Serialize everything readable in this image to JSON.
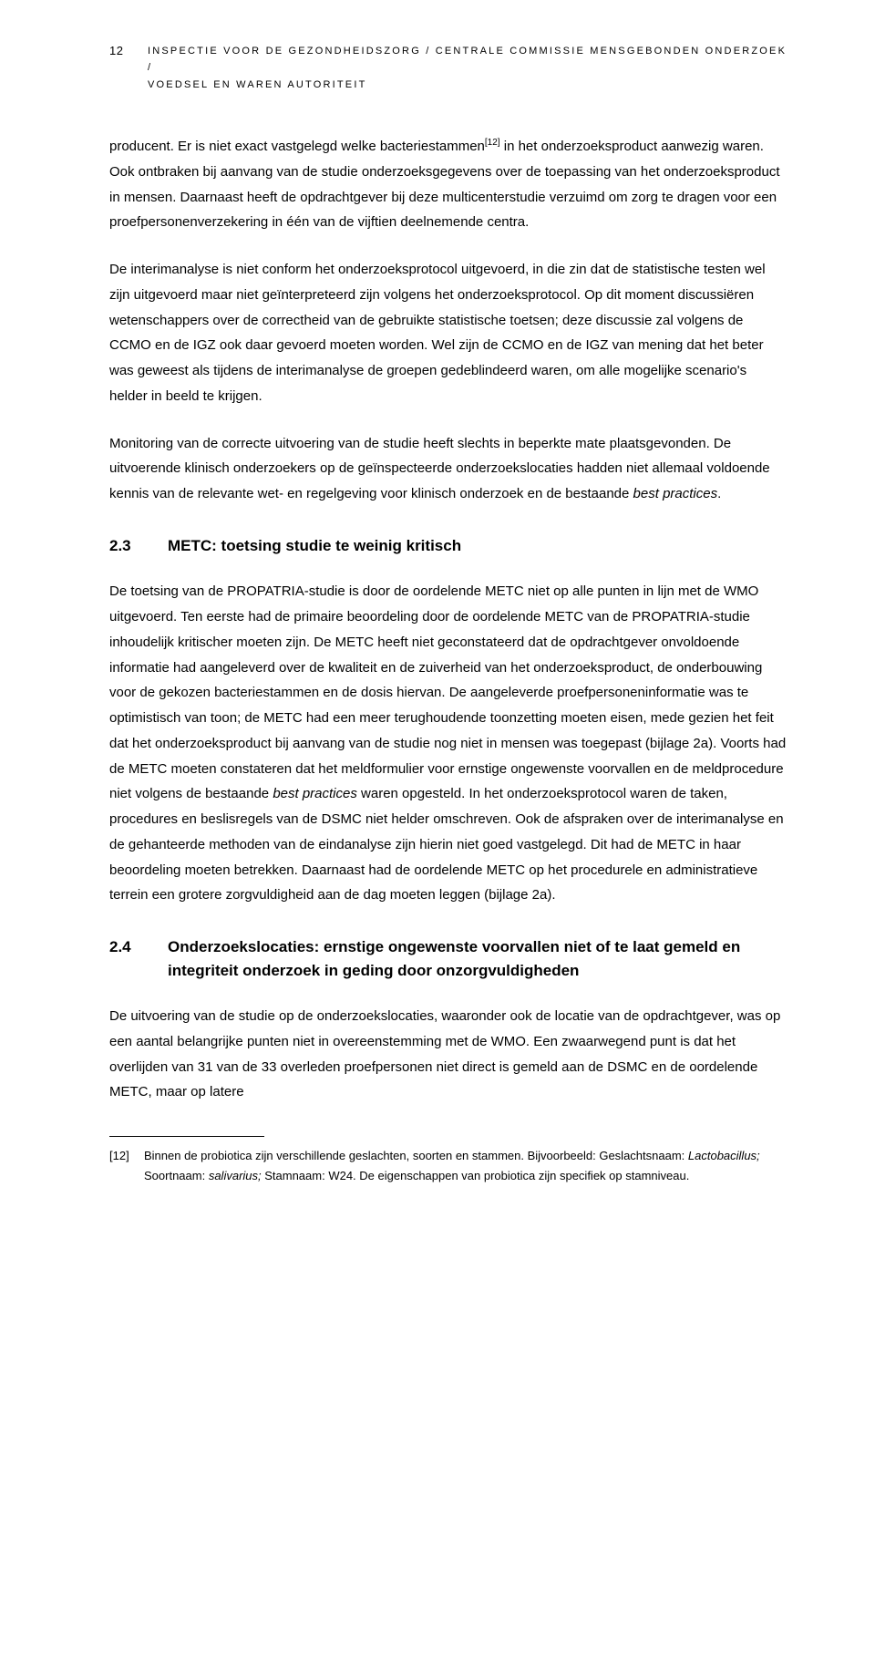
{
  "page_number": "12",
  "header": {
    "line1": "INSPECTIE VOOR DE GEZONDHEIDSZORG / CENTRALE COMMISSIE MENSGEBONDEN ONDERZOEK /",
    "line2": "VOEDSEL EN WAREN AUTORITEIT"
  },
  "para1_a": "producent. Er is niet exact vastgelegd welke bacteriestammen",
  "para1_ref": "[12]",
  "para1_b": " in het onderzoeks­product aanwezig waren. Ook ontbraken bij aanvang van de studie onderzoeks­gegevens over de toepassing van het onderzoeksproduct in mensen. Daarnaast heeft de opdrachtgever bij deze multicenterstudie verzuimd om zorg te dragen voor een proefpersonenverzekering in één van de vijftien deelnemende centra.",
  "para2": "De interimanalyse is niet conform het onderzoeksprotocol uitgevoerd, in die zin dat de statistische testen wel zijn uitgevoerd maar niet geïnterpreteerd zijn volgens het onderzoeksprotocol. Op dit moment discussiëren wetenschappers over de correctheid van de gebruikte statistische toetsen; deze discussie zal volgens de CCMO en de IGZ ook daar gevoerd moeten worden. Wel zijn de CCMO en de IGZ van mening dat het beter was geweest als tijdens de interimanalyse de groepen gedeblindeerd waren, om alle mogelijke scenario's helder in beeld te krijgen.",
  "para3_a": "Monitoring van de correcte uitvoering van de studie heeft slechts in beperkte mate plaatsgevonden. De uitvoerende klinisch onderzoekers op de geïnspecteerde onder­zoekslocaties hadden niet allemaal voldoende kennis van de relevante wet- en regel­geving voor klinisch onderzoek en de bestaande ",
  "para3_ital": "best practices",
  "para3_b": ".",
  "section23": {
    "num": "2.3",
    "title": "METC: toetsing studie te weinig kritisch"
  },
  "para4_a": "De toetsing van de PROPATRIA-studie is door de oordelende METC niet op alle punten in lijn met de WMO uitgevoerd. Ten eerste had de primaire beoordeling door de oordelende METC van de PROPATRIA-studie inhoudelijk kritischer moeten zijn. De METC heeft niet geconstateerd dat de opdrachtgever onvoldoende informatie had aangeleverd over de kwaliteit en de zuiverheid van het onderzoeksproduct, de onder­bouwing voor de gekozen bacteriestammen en de dosis hiervan. De aangeleverde proefpersoneninformatie was te optimistisch van toon; de METC had een meer terug­houdende toonzetting moeten eisen, mede gezien het feit dat het onderzoeksproduct bij aanvang van de studie nog niet in mensen was toegepast (bijlage 2a). Voorts had de METC moeten constateren dat het meldformulier voor ernstige ongewenste voorvallen en de meldprocedure niet volgens de bestaande ",
  "para4_ital": "best practices",
  "para4_b": " waren opgesteld. In het onderzoeksprotocol waren de taken, procedures en beslisregels van de DSMC niet helder omschreven. Ook de afspraken over de interimanalyse en de gehanteerde methoden van de eindanalyse zijn hierin niet goed vastgelegd. Dit had de METC in haar beoordeling moeten betrekken. Daarnaast had de oordelende METC op het procedurele en administratieve terrein een grotere zorgvuldigheid aan de dag moeten leggen (bijlage 2a).",
  "section24": {
    "num": "2.4",
    "title": "Onderzoekslocaties: ernstige ongewenste voorvallen niet of te laat gemeld en integriteit onderzoek in geding door onzorgvuldigheden"
  },
  "para5": "De uitvoering van de studie op de onderzoekslocaties, waaronder ook de locatie van de opdrachtgever, was op een aantal belangrijke punten niet in overeenstemming met de WMO. Een zwaarwegend punt is dat het overlijden van 31 van de 33 overleden proef­personen niet direct is gemeld aan de DSMC en de oordelende METC, maar op latere",
  "footnote": {
    "num": "[12]",
    "a": "Binnen de probiotica zijn verschillende geslachten, soorten en stammen. Bijvoorbeeld: Geslachtsnaam: ",
    "i1": "Lactobacillus;",
    "b": " Soortnaam: ",
    "i2": "salivarius;",
    "c": " Stamnaam: W24. De eigenschappen van probiotica zijn specifiek op stamniveau."
  }
}
